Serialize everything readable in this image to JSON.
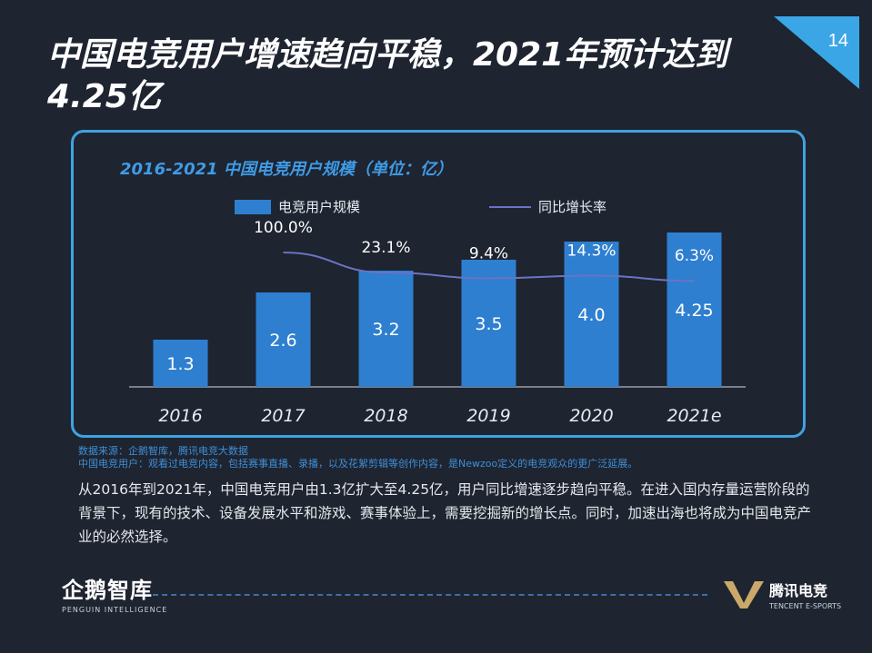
{
  "page": {
    "number": "14",
    "title": "中国电竞用户增速趋向平稳，2021年预计达到4.25亿"
  },
  "chart_data": {
    "type": "bar",
    "title": "2016-2021 中国电竞用户规模（单位：亿）",
    "categories": [
      "2016",
      "2017",
      "2018",
      "2019",
      "2020",
      "2021e"
    ],
    "series": [
      {
        "name": "电竞用户规模",
        "type": "bar",
        "values": [
          1.3,
          2.6,
          3.2,
          3.5,
          4.0,
          4.25
        ],
        "labels": [
          "1.3",
          "2.6",
          "3.2",
          "3.5",
          "4.0",
          "4.25"
        ]
      },
      {
        "name": "同比增长率",
        "type": "line",
        "values": [
          null,
          100.0,
          23.1,
          9.4,
          14.3,
          6.3
        ],
        "labels": [
          "",
          "100.0%",
          "23.1%",
          "9.4%",
          "14.3%",
          "6.3%"
        ]
      }
    ],
    "ylim": [
      0,
      5
    ],
    "colors": {
      "bar": "#2e7fd0",
      "line": "#6a73c4"
    }
  },
  "notes": {
    "source": "数据来源：企鹅智库，腾讯电竞大数据",
    "definition": "中国电竞用户：观看过电竞内容，包括赛事直播、录播，以及花絮剪辑等创作内容，是Newzoo定义的电竞观众的更广泛延展。"
  },
  "body_text": "从2016年到2021年，中国电竞用户由1.3亿扩大至4.25亿，用户同比增速逐步趋向平稳。在进入国内存量运营阶段的背景下，现有的技术、设备发展水平和游戏、赛事体验上，需要挖掘新的增长点。同时，加速出海也将成为中国电竞产业的必然选择。",
  "footer": {
    "left_logo": "企鹅智库",
    "left_logo_sub": "PENGUIN INTELLIGENCE",
    "right_logo": "腾讯电竞",
    "right_logo_sub": "TENCENT E-SPORTS"
  }
}
